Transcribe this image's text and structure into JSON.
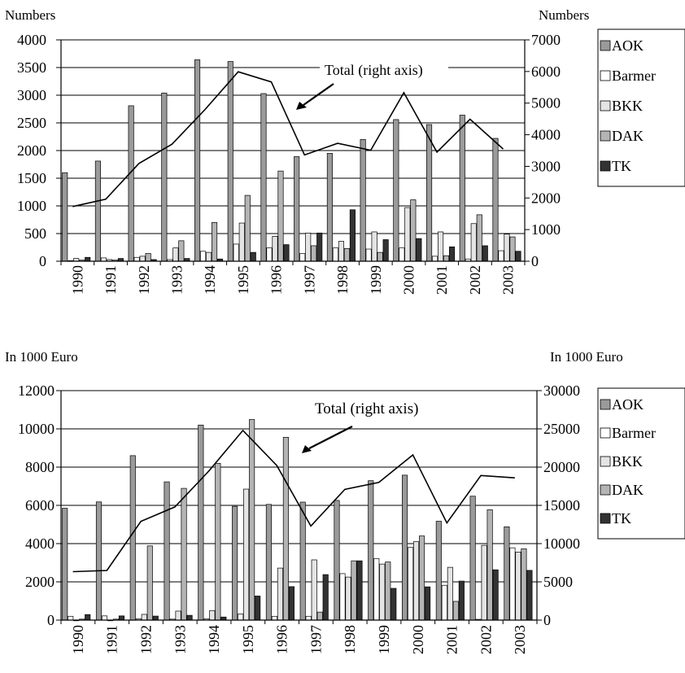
{
  "colors": {
    "AOK": "#9a9a9a",
    "Barmer": "#ffffff",
    "BKK": "#e4e4e4",
    "DAK": "#b4b4b4",
    "TK": "#333333",
    "line": "#000000",
    "grid": "#000000"
  },
  "chart_data": [
    {
      "type": "bar",
      "left_axis_label": "Numbers",
      "right_axis_label": "Numbers",
      "annotation": "Total (right axis)",
      "categories": [
        "1990",
        "1991",
        "1992",
        "1993",
        "1994",
        "1995",
        "1996",
        "1997",
        "1998",
        "1999",
        "2000",
        "2001",
        "2002",
        "2003"
      ],
      "ylim": [
        0,
        4000
      ],
      "y_ticks": [
        0,
        500,
        1000,
        1500,
        2000,
        2500,
        3000,
        3500,
        4000
      ],
      "y2lim": [
        0,
        7000
      ],
      "y2_ticks": [
        0,
        1000,
        2000,
        3000,
        4000,
        5000,
        6000,
        7000
      ],
      "series": [
        {
          "name": "AOK",
          "values": [
            1600,
            1810,
            2810,
            3040,
            3640,
            3610,
            3030,
            1890,
            1950,
            2200,
            2560,
            2470,
            2640,
            2220
          ]
        },
        {
          "name": "Barmer",
          "values": [
            10,
            60,
            70,
            30,
            180,
            310,
            240,
            140,
            240,
            220,
            240,
            90,
            40,
            190
          ]
        },
        {
          "name": "BKK",
          "values": [
            50,
            30,
            90,
            240,
            160,
            690,
            450,
            510,
            360,
            530,
            970,
            530,
            680,
            490
          ]
        },
        {
          "name": "DAK",
          "values": [
            20,
            20,
            140,
            370,
            700,
            1190,
            1630,
            280,
            230,
            160,
            1110,
            100,
            840,
            440
          ]
        },
        {
          "name": "TK",
          "values": [
            70,
            50,
            30,
            50,
            40,
            160,
            300,
            510,
            930,
            390,
            410,
            260,
            280,
            180
          ]
        },
        {
          "name": "Total",
          "axis": "right",
          "type": "line",
          "values": [
            1730,
            1960,
            3090,
            3700,
            4800,
            5990,
            5670,
            3360,
            3730,
            3510,
            5330,
            3450,
            4490,
            3550
          ]
        }
      ]
    },
    {
      "type": "bar",
      "left_axis_label": "In 1000 Euro",
      "right_axis_label": "In 1000 Euro",
      "annotation": "Total (right axis)",
      "categories": [
        "1990",
        "1991",
        "1992",
        "1993",
        "1994",
        "1995",
        "1996",
        "1997",
        "1998",
        "1999",
        "2000",
        "2001",
        "2002",
        "2003"
      ],
      "ylim": [
        0,
        12000
      ],
      "y_ticks": [
        0,
        2000,
        4000,
        6000,
        8000,
        10000,
        12000
      ],
      "y2lim": [
        0,
        30000
      ],
      "y2_ticks": [
        0,
        5000,
        10000,
        15000,
        20000,
        25000,
        30000
      ],
      "series": [
        {
          "name": "AOK",
          "values": [
            5850,
            6180,
            8600,
            7230,
            10200,
            5950,
            6050,
            6170,
            6260,
            7290,
            7580,
            5170,
            6480,
            4880
          ]
        },
        {
          "name": "Barmer",
          "values": [
            200,
            220,
            70,
            50,
            60,
            320,
            200,
            200,
            2430,
            3220,
            3800,
            1820,
            40,
            3780
          ]
        },
        {
          "name": "BKK",
          "values": [
            0,
            0,
            300,
            470,
            500,
            6850,
            2720,
            3150,
            2250,
            2930,
            4100,
            2760,
            3910,
            3560
          ]
        },
        {
          "name": "DAK",
          "values": [
            50,
            50,
            3880,
            6890,
            8200,
            10490,
            9560,
            420,
            3100,
            3040,
            4400,
            980,
            5770,
            3730
          ]
        },
        {
          "name": "TK",
          "values": [
            290,
            220,
            210,
            250,
            160,
            1260,
            1750,
            2380,
            3100,
            1660,
            1740,
            2040,
            2630,
            2600
          ]
        },
        {
          "name": "Total",
          "axis": "right",
          "type": "line",
          "values": [
            6330,
            6490,
            12900,
            14800,
            19500,
            24800,
            20200,
            12300,
            17100,
            18000,
            21600,
            12700,
            18900,
            18600
          ]
        }
      ]
    }
  ]
}
